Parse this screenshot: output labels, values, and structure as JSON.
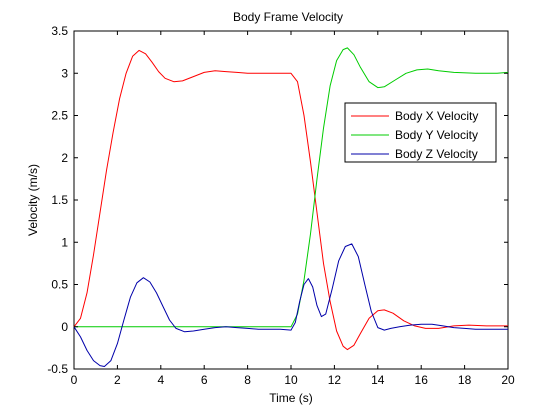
{
  "chart_data": {
    "type": "line",
    "title": "Body Frame Velocity",
    "xlabel": "Time (s)",
    "ylabel": "Velocity (m/s)",
    "xlim": [
      0,
      20
    ],
    "ylim": [
      -0.5,
      3.5
    ],
    "xticks": [
      0,
      2,
      4,
      6,
      8,
      10,
      12,
      14,
      16,
      18,
      20
    ],
    "xtick_labels": [
      "0",
      "2",
      "4",
      "6",
      "8",
      "10",
      "12",
      "14",
      "16",
      "18",
      "20"
    ],
    "yticks": [
      -0.5,
      0,
      0.5,
      1,
      1.5,
      2,
      2.5,
      3,
      3.5
    ],
    "ytick_labels": [
      "-0.5",
      "0",
      "0.5",
      "1",
      "1.5",
      "2",
      "2.5",
      "3",
      "3.5"
    ],
    "grid": false,
    "legend_position": "right",
    "series": [
      {
        "name": "Body X Velocity",
        "color": "#ff0000",
        "points": [
          [
            0,
            0
          ],
          [
            0.3,
            0.1
          ],
          [
            0.6,
            0.4
          ],
          [
            0.9,
            0.85
          ],
          [
            1.2,
            1.35
          ],
          [
            1.5,
            1.85
          ],
          [
            1.8,
            2.3
          ],
          [
            2.1,
            2.7
          ],
          [
            2.4,
            3.0
          ],
          [
            2.7,
            3.2
          ],
          [
            3.0,
            3.27
          ],
          [
            3.3,
            3.23
          ],
          [
            3.6,
            3.13
          ],
          [
            3.9,
            3.02
          ],
          [
            4.2,
            2.94
          ],
          [
            4.6,
            2.9
          ],
          [
            5.0,
            2.91
          ],
          [
            5.5,
            2.96
          ],
          [
            6.0,
            3.01
          ],
          [
            6.5,
            3.03
          ],
          [
            7.0,
            3.02
          ],
          [
            7.5,
            3.01
          ],
          [
            8.0,
            3.0
          ],
          [
            8.5,
            3.0
          ],
          [
            9.0,
            3.0
          ],
          [
            9.5,
            3.0
          ],
          [
            10.0,
            3.0
          ],
          [
            10.3,
            2.9
          ],
          [
            10.6,
            2.5
          ],
          [
            10.9,
            1.95
          ],
          [
            11.2,
            1.35
          ],
          [
            11.5,
            0.75
          ],
          [
            11.8,
            0.3
          ],
          [
            12.1,
            -0.05
          ],
          [
            12.4,
            -0.23
          ],
          [
            12.6,
            -0.27
          ],
          [
            12.9,
            -0.22
          ],
          [
            13.2,
            -0.08
          ],
          [
            13.6,
            0.1
          ],
          [
            14.0,
            0.19
          ],
          [
            14.3,
            0.2
          ],
          [
            14.7,
            0.16
          ],
          [
            15.2,
            0.07
          ],
          [
            15.7,
            0.01
          ],
          [
            16.2,
            -0.02
          ],
          [
            16.8,
            -0.02
          ],
          [
            17.5,
            0.01
          ],
          [
            18.2,
            0.02
          ],
          [
            19.0,
            0.01
          ],
          [
            20.0,
            0.01
          ]
        ]
      },
      {
        "name": "Body Y Velocity",
        "color": "#00cc00",
        "points": [
          [
            0,
            0
          ],
          [
            2,
            0
          ],
          [
            4,
            0
          ],
          [
            6,
            0
          ],
          [
            8,
            0
          ],
          [
            10.0,
            0.0
          ],
          [
            10.3,
            0.15
          ],
          [
            10.6,
            0.55
          ],
          [
            10.9,
            1.1
          ],
          [
            11.2,
            1.75
          ],
          [
            11.5,
            2.35
          ],
          [
            11.8,
            2.85
          ],
          [
            12.1,
            3.15
          ],
          [
            12.4,
            3.28
          ],
          [
            12.6,
            3.3
          ],
          [
            12.9,
            3.22
          ],
          [
            13.2,
            3.07
          ],
          [
            13.6,
            2.9
          ],
          [
            14.0,
            2.83
          ],
          [
            14.3,
            2.84
          ],
          [
            14.8,
            2.92
          ],
          [
            15.3,
            3.0
          ],
          [
            15.8,
            3.04
          ],
          [
            16.3,
            3.05
          ],
          [
            16.8,
            3.03
          ],
          [
            17.5,
            3.01
          ],
          [
            18.5,
            3.0
          ],
          [
            19.5,
            3.0
          ],
          [
            20.0,
            3.01
          ]
        ]
      },
      {
        "name": "Body Z Velocity",
        "color": "#0000aa",
        "points": [
          [
            0,
            0
          ],
          [
            0.3,
            -0.12
          ],
          [
            0.6,
            -0.28
          ],
          [
            0.9,
            -0.4
          ],
          [
            1.2,
            -0.46
          ],
          [
            1.4,
            -0.47
          ],
          [
            1.7,
            -0.4
          ],
          [
            2.0,
            -0.2
          ],
          [
            2.3,
            0.08
          ],
          [
            2.6,
            0.35
          ],
          [
            2.9,
            0.52
          ],
          [
            3.2,
            0.58
          ],
          [
            3.5,
            0.53
          ],
          [
            3.8,
            0.4
          ],
          [
            4.1,
            0.24
          ],
          [
            4.4,
            0.08
          ],
          [
            4.7,
            -0.02
          ],
          [
            5.1,
            -0.06
          ],
          [
            5.5,
            -0.05
          ],
          [
            6.0,
            -0.03
          ],
          [
            6.5,
            -0.01
          ],
          [
            7.0,
            0.0
          ],
          [
            7.5,
            -0.01
          ],
          [
            8.0,
            -0.02
          ],
          [
            8.5,
            -0.03
          ],
          [
            9.0,
            -0.03
          ],
          [
            9.5,
            -0.03
          ],
          [
            10.0,
            -0.04
          ],
          [
            10.2,
            0.05
          ],
          [
            10.4,
            0.3
          ],
          [
            10.6,
            0.5
          ],
          [
            10.8,
            0.57
          ],
          [
            11.0,
            0.47
          ],
          [
            11.2,
            0.25
          ],
          [
            11.4,
            0.12
          ],
          [
            11.6,
            0.15
          ],
          [
            11.9,
            0.45
          ],
          [
            12.2,
            0.78
          ],
          [
            12.5,
            0.95
          ],
          [
            12.8,
            0.98
          ],
          [
            13.1,
            0.83
          ],
          [
            13.4,
            0.5
          ],
          [
            13.7,
            0.18
          ],
          [
            14.0,
            -0.01
          ],
          [
            14.3,
            -0.04
          ],
          [
            14.6,
            -0.02
          ],
          [
            15.0,
            0.0
          ],
          [
            15.5,
            0.02
          ],
          [
            16.0,
            0.03
          ],
          [
            16.5,
            0.03
          ],
          [
            17.0,
            0.01
          ],
          [
            17.5,
            -0.01
          ],
          [
            18.0,
            -0.02
          ],
          [
            18.5,
            -0.03
          ],
          [
            19.0,
            -0.03
          ],
          [
            20.0,
            -0.03
          ]
        ]
      }
    ]
  }
}
